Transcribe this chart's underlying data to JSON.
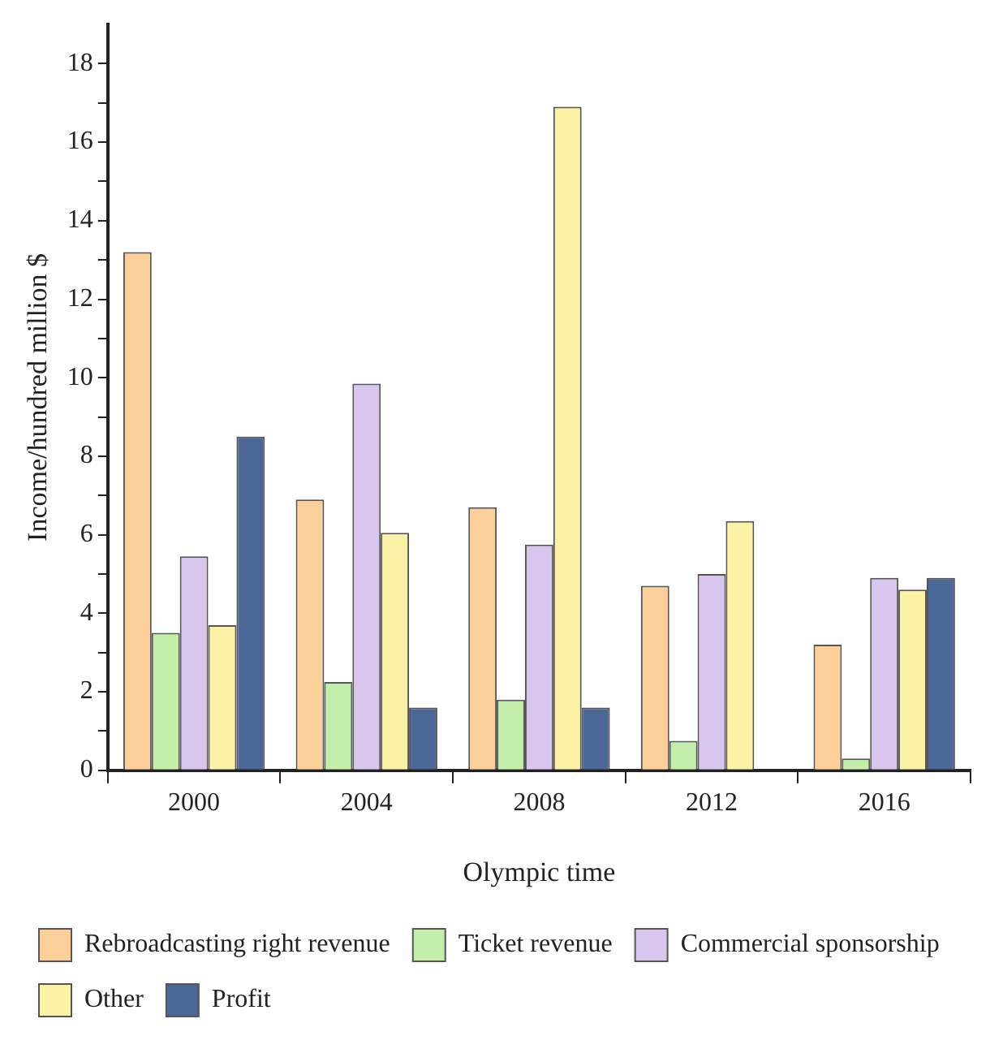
{
  "chart_data": {
    "type": "bar",
    "xlabel": "Olympic time",
    "ylabel": "Income/hundred million $",
    "categories": [
      "2000",
      "2004",
      "2008",
      "2012",
      "2016"
    ],
    "series": [
      {
        "name": "Rebroadcasting right revenue",
        "color": "#fdd09a",
        "values": [
          13.2,
          6.9,
          6.7,
          4.7,
          3.2
        ]
      },
      {
        "name": "Ticket revenue",
        "color": "#c2eeaa",
        "values": [
          3.5,
          2.25,
          1.8,
          0.75,
          0.3
        ]
      },
      {
        "name": "Commercial sponsorship",
        "color": "#d9c6ee",
        "values": [
          5.45,
          9.85,
          5.75,
          5.0,
          4.9
        ]
      },
      {
        "name": "Other",
        "color": "#fbf2a6",
        "values": [
          3.7,
          6.05,
          16.9,
          6.35,
          4.6
        ]
      },
      {
        "name": "Profit",
        "color": "#4a6796",
        "values": [
          8.5,
          1.6,
          1.6,
          null,
          4.9
        ]
      }
    ],
    "ylim": [
      0,
      19
    ],
    "yticks": [
      0,
      {
        "value": 1,
        "label": null
      },
      2,
      {
        "value": 3,
        "label": null
      },
      4,
      {
        "value": 5,
        "label": null
      },
      6,
      {
        "value": 7,
        "label": null
      },
      8,
      {
        "value": 9,
        "label": null
      },
      10,
      {
        "value": 11,
        "label": null
      },
      12,
      {
        "value": 13,
        "label": null
      },
      14,
      {
        "value": 15,
        "label": null
      },
      16,
      {
        "value": 17,
        "label": null
      },
      18
    ],
    "grid": false,
    "legend": "bottom"
  }
}
